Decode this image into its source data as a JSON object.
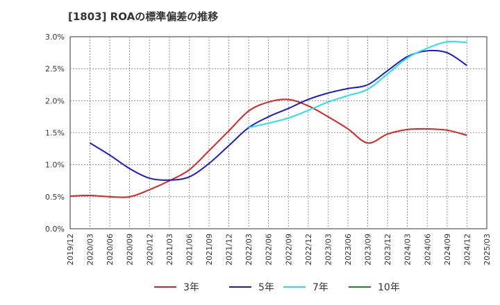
{
  "header": {
    "title": "[1803]  ROAの標準偏差の推移"
  },
  "chart_data": {
    "type": "line",
    "title": "[1803]  ROAの標準偏差の推移",
    "xlabel": "",
    "ylabel": "",
    "x": [
      "2019/12",
      "2020/03",
      "2020/06",
      "2020/09",
      "2020/12",
      "2021/03",
      "2021/06",
      "2021/09",
      "2021/12",
      "2022/03",
      "2022/06",
      "2022/09",
      "2022/12",
      "2023/03",
      "2023/06",
      "2023/09",
      "2023/12",
      "2024/03",
      "2024/06",
      "2024/09",
      "2024/12",
      "2025/03"
    ],
    "ylim": [
      0,
      3.0
    ],
    "y_ticks": [
      "0.0%",
      "0.5%",
      "1.0%",
      "1.5%",
      "2.0%",
      "2.5%",
      "3.0%"
    ],
    "y_unit": "%",
    "grid": true,
    "legend_position": "bottom",
    "series": [
      {
        "name": "3年",
        "color": "#e02020",
        "values": [
          0.51,
          0.52,
          0.5,
          0.5,
          0.61,
          0.75,
          0.92,
          1.22,
          1.53,
          1.84,
          1.98,
          2.02,
          1.92,
          1.75,
          1.56,
          1.34,
          1.48,
          1.55,
          1.56,
          1.54,
          1.46,
          null
        ]
      },
      {
        "name": "5年",
        "color": "#1a1acd",
        "values": [
          null,
          1.34,
          1.15,
          0.94,
          0.79,
          0.76,
          0.81,
          1.02,
          1.3,
          1.58,
          1.75,
          1.88,
          2.02,
          2.12,
          2.19,
          2.25,
          2.47,
          2.69,
          2.78,
          2.75,
          2.55,
          null
        ]
      },
      {
        "name": "7年",
        "color": "#22e0f0",
        "values": [
          null,
          null,
          null,
          null,
          null,
          null,
          null,
          null,
          null,
          1.58,
          1.65,
          1.73,
          1.85,
          1.98,
          2.08,
          2.18,
          2.42,
          2.67,
          2.82,
          2.92,
          2.91,
          null
        ]
      },
      {
        "name": "10年",
        "color": "#1a8a1a",
        "values": [
          null,
          null,
          null,
          null,
          null,
          null,
          null,
          null,
          null,
          null,
          null,
          null,
          null,
          null,
          null,
          null,
          null,
          null,
          null,
          null,
          null,
          null
        ]
      }
    ]
  }
}
